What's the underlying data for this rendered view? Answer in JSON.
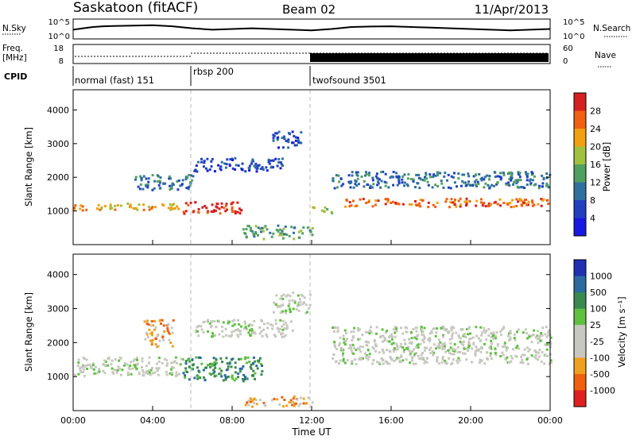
{
  "header": {
    "station": "Saskatoon (fitACF)",
    "beam": "Beam 02",
    "date": "11/Apr/2013"
  },
  "chart_data": [
    {
      "type": "line",
      "panel": "noise",
      "left_label": "N.Sky",
      "right_label": "N.Search",
      "left_ticks": [
        "10^5",
        "10^0"
      ],
      "right_ticks": [
        "10^5",
        "10^0"
      ],
      "series_shape": [
        [
          0,
          0.55
        ],
        [
          0.5,
          0.45
        ],
        [
          1,
          0.35
        ],
        [
          1.5,
          0.3
        ],
        [
          2,
          0.28
        ],
        [
          3,
          0.25
        ],
        [
          4,
          0.22
        ],
        [
          5,
          0.3
        ],
        [
          6,
          0.45
        ],
        [
          7,
          0.55
        ],
        [
          8,
          0.5
        ],
        [
          9,
          0.45
        ],
        [
          10,
          0.5
        ],
        [
          11,
          0.55
        ],
        [
          12,
          0.6
        ],
        [
          13,
          0.5
        ],
        [
          14,
          0.35
        ],
        [
          15,
          0.32
        ],
        [
          16,
          0.3
        ],
        [
          17,
          0.35
        ],
        [
          18,
          0.4
        ],
        [
          19,
          0.45
        ],
        [
          20,
          0.5
        ],
        [
          21,
          0.55
        ],
        [
          22,
          0.6
        ],
        [
          23,
          0.55
        ],
        [
          24,
          0.5
        ]
      ]
    },
    {
      "type": "line",
      "panel": "frequency",
      "left_label_line1": "Freq.",
      "left_label_line2": "[MHz]",
      "right_label": "Nave",
      "left_ticks": [
        "18",
        "8"
      ],
      "right_ticks": [
        "60",
        "0"
      ]
    },
    {
      "type": "table",
      "panel": "cpid",
      "label": "CPID",
      "modes": [
        {
          "name": "normal (fast) 151",
          "start_hour": 0
        },
        {
          "name": "rbsp 200",
          "start_hour": 6
        },
        {
          "name": "twofsound 3501",
          "start_hour": 12
        }
      ]
    },
    {
      "type": "heatmap",
      "panel": "power",
      "ylabel": "Slant Range [km]",
      "ylim": [
        0,
        4600
      ],
      "yticks": [
        1000,
        2000,
        3000,
        4000
      ],
      "colorbar_label": "Power [dB]",
      "colorbar_ticks": [
        "28",
        "24",
        "20",
        "16",
        "12",
        "8",
        "4"
      ],
      "colors": [
        "#d62020",
        "#f06010",
        "#f0a010",
        "#a0c040",
        "#50a060",
        "#3070a0",
        "#2040c0",
        "#1818e0"
      ],
      "bands": [
        {
          "x": [
            0,
            5.5
          ],
          "y": [
            1050,
            1250
          ],
          "level": 2
        },
        {
          "x": [
            3,
            6
          ],
          "y": [
            1650,
            2100
          ],
          "level": 5
        },
        {
          "x": [
            5.5,
            8.5
          ],
          "y": [
            950,
            1300
          ],
          "level": 0
        },
        {
          "x": [
            6,
            10.5
          ],
          "y": [
            2200,
            2600
          ],
          "level": 6
        },
        {
          "x": [
            10,
            11.5
          ],
          "y": [
            2900,
            3400
          ],
          "level": 6
        },
        {
          "x": [
            12,
            13
          ],
          "y": [
            950,
            1150
          ],
          "level": 3
        },
        {
          "x": [
            13.5,
            24
          ],
          "y": [
            1150,
            1400
          ],
          "level": 1
        },
        {
          "x": [
            13,
            24
          ],
          "y": [
            1700,
            2200
          ],
          "level": 5
        },
        {
          "x": [
            8.5,
            12
          ],
          "y": [
            200,
            600
          ],
          "level": 4
        }
      ]
    },
    {
      "type": "heatmap",
      "panel": "velocity",
      "ylabel": "Slant Range [km]",
      "xlabel": "Time UT",
      "ylim": [
        0,
        4600
      ],
      "yticks": [
        1000,
        2000,
        3000,
        4000
      ],
      "colorbar_label": "Velocity [m s⁻¹]",
      "colorbar_ticks": [
        "1000",
        "500",
        "100",
        "25",
        "-25",
        "-100",
        "-500",
        "-1000"
      ],
      "colors": [
        "#2030b0",
        "#2c6aa0",
        "#3a8a50",
        "#60c040",
        "#c8c8c0",
        "#c8c8c0",
        "#f0a020",
        "#f06010",
        "#e02020"
      ],
      "xticks": [
        "00:00",
        "04:00",
        "08:00",
        "12:00",
        "16:00",
        "20:00",
        "00:00"
      ],
      "bands": [
        {
          "x": [
            0,
            5.5
          ],
          "y": [
            1050,
            1600
          ],
          "level": 4
        },
        {
          "x": [
            3.5,
            5
          ],
          "y": [
            1900,
            2700
          ],
          "level": 6
        },
        {
          "x": [
            5.5,
            9.5
          ],
          "y": [
            900,
            1600
          ],
          "level": 2
        },
        {
          "x": [
            6,
            11
          ],
          "y": [
            2200,
            2700
          ],
          "level": 4
        },
        {
          "x": [
            10,
            12
          ],
          "y": [
            2900,
            3500
          ],
          "level": 4
        },
        {
          "x": [
            13,
            24
          ],
          "y": [
            1400,
            2500
          ],
          "level": 4
        },
        {
          "x": [
            8.5,
            12
          ],
          "y": [
            150,
            450
          ],
          "level": 6
        }
      ]
    }
  ]
}
